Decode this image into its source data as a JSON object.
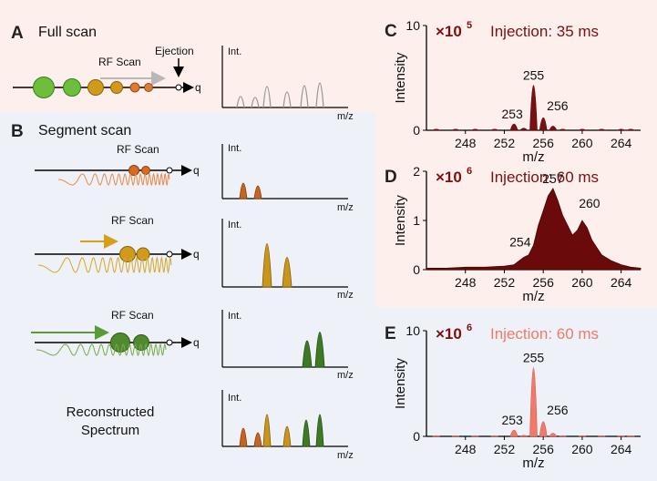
{
  "panels": {
    "A": {
      "letter": "A",
      "title": "Full scan",
      "rf_label": "RF Scan",
      "ejection_label": "Ejection",
      "q_label": "q",
      "int_label": "Int.",
      "mz_label": "m/z"
    },
    "B": {
      "letter": "B",
      "title": "Segment scan",
      "rows": [
        {
          "rf_label": "RF Scan",
          "q_label": "q",
          "int_label": "Int.",
          "mz_label": "m/z"
        },
        {
          "rf_label": "RF Scan",
          "q_label": "q",
          "int_label": "Int.",
          "mz_label": "m/z"
        },
        {
          "rf_label": "RF Scan",
          "q_label": "q",
          "int_label": "Int.",
          "mz_label": "m/z"
        }
      ],
      "reconstructed_line1": "Reconstructed",
      "reconstructed_line2": "Spectrum",
      "reconstructed_int_label": "Int.",
      "reconstructed_mz_label": "m/z"
    },
    "C": {
      "letter": "C",
      "multiplier": "×10",
      "exponent": "5",
      "injection": "Injection: 35 ms"
    },
    "D": {
      "letter": "D",
      "multiplier": "×10",
      "exponent": "6",
      "injection": "Injection: 60 ms"
    },
    "E": {
      "letter": "E",
      "multiplier": "×10",
      "exponent": "6",
      "injection": "Injection: 60 ms"
    }
  },
  "colors": {
    "panel_a_bg": "#fdf0ec",
    "panel_b_bg": "#eef2f8",
    "dark_red": "#7a1010",
    "salmon": "#f07a6a",
    "green_big": "#6cbf3c",
    "gold": "#d19a1b",
    "orange": "#e07a2e",
    "olive": "#4f8a2e",
    "green_arrow": "#5a9a38",
    "gold_arrow": "#d4a017"
  },
  "chart_data": [
    {
      "id": "C",
      "type": "bar",
      "title": "Injection: 35 ms",
      "scale": "×10^5",
      "xlabel": "m/z",
      "ylabel": "Intensity",
      "xlim": [
        244,
        266
      ],
      "ylim": [
        0,
        10
      ],
      "xticks": [
        248,
        252,
        256,
        260,
        264
      ],
      "yticks": [
        0,
        10
      ],
      "x": [
        245,
        247,
        249,
        251,
        253,
        254,
        255,
        256,
        257,
        258,
        260,
        262,
        264,
        265
      ],
      "values": [
        0.1,
        0.1,
        0.1,
        0.1,
        0.6,
        0.2,
        4.3,
        1.2,
        0.4,
        0.1,
        0.1,
        0.1,
        0.1,
        0.1
      ],
      "peak_labels": [
        {
          "x": 253,
          "text": "253"
        },
        {
          "x": 255,
          "text": "255"
        },
        {
          "x": 256,
          "text": "256"
        }
      ]
    },
    {
      "id": "D",
      "type": "area",
      "title": "Injection: 60 ms",
      "scale": "×10^6",
      "xlabel": "m/z",
      "ylabel": "Intensity",
      "xlim": [
        244,
        266
      ],
      "ylim": [
        0,
        2
      ],
      "xticks": [
        248,
        252,
        256,
        260,
        264
      ],
      "yticks": [
        0,
        1,
        2
      ],
      "x": [
        244,
        246,
        248,
        250,
        252,
        253,
        254,
        254.5,
        255,
        255.5,
        256,
        256.5,
        257,
        257.5,
        258,
        258.5,
        259,
        259.5,
        260,
        260.5,
        261,
        261.5,
        262,
        263,
        264,
        265,
        266
      ],
      "values": [
        0.03,
        0.03,
        0.05,
        0.05,
        0.07,
        0.1,
        0.25,
        0.3,
        0.5,
        0.9,
        1.2,
        1.5,
        1.65,
        1.4,
        1.1,
        0.9,
        0.7,
        0.8,
        1.0,
        0.85,
        0.6,
        0.45,
        0.3,
        0.18,
        0.1,
        0.05,
        0.03
      ],
      "peak_labels": [
        {
          "x": 254,
          "text": "254"
        },
        {
          "x": 257,
          "text": "257"
        },
        {
          "x": 260,
          "text": "260"
        }
      ]
    },
    {
      "id": "E",
      "type": "bar",
      "title": "Injection: 60 ms",
      "scale": "×10^6",
      "xlabel": "m/z",
      "ylabel": "Intensity",
      "xlim": [
        244,
        266
      ],
      "ylim": [
        0,
        10
      ],
      "xticks": [
        248,
        252,
        256,
        260,
        264
      ],
      "yticks": [
        0,
        10
      ],
      "x": [
        245,
        247,
        249,
        251,
        253,
        254,
        255,
        256,
        257,
        258,
        260,
        262,
        264,
        265
      ],
      "values": [
        0.05,
        0.05,
        0.05,
        0.05,
        0.6,
        0.1,
        6.5,
        1.4,
        0.3,
        0.05,
        0.05,
        0.05,
        0.05,
        0.05
      ],
      "peak_labels": [
        {
          "x": 253,
          "text": "253"
        },
        {
          "x": 255,
          "text": "255"
        },
        {
          "x": 256,
          "text": "256"
        }
      ]
    }
  ]
}
